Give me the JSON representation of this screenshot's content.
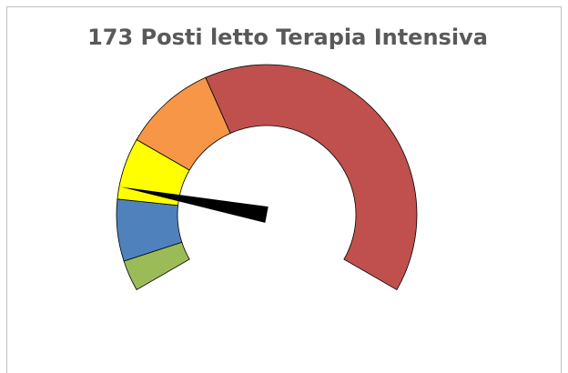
{
  "chart_data": {
    "type": "gauge",
    "title": "173 Posti letto Terapia Intensiva",
    "values": [
      5,
      10,
      10,
      15,
      60
    ],
    "colors": [
      "#9bbb59",
      "#4f81bd",
      "#ffff00",
      "#f79646",
      "#c0504d"
    ],
    "needle": 17,
    "needle_color": "#000000"
  }
}
